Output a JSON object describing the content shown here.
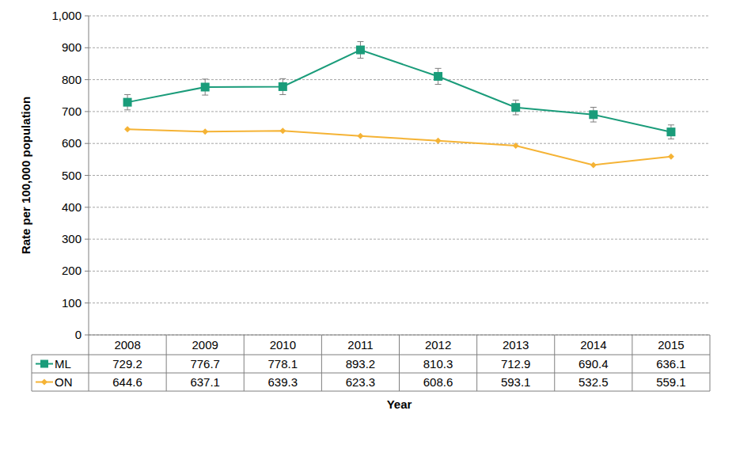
{
  "chart_data": {
    "type": "line",
    "y_label": "Rate per 100,000 population",
    "x_label": "Year",
    "categories": [
      "2008",
      "2009",
      "2010",
      "2011",
      "2012",
      "2013",
      "2014",
      "2015"
    ],
    "series": [
      {
        "name": "ML",
        "color": "#1a9c7a",
        "marker": "square",
        "values": [
          729.2,
          776.7,
          778.1,
          893.2,
          810.3,
          712.9,
          690.4,
          636.1
        ],
        "errors": [
          24,
          25,
          25,
          26,
          25,
          23,
          23,
          22
        ]
      },
      {
        "name": "ON",
        "color": "#f5b335",
        "marker": "diamond",
        "values": [
          644.6,
          637.1,
          639.3,
          623.3,
          608.6,
          593.1,
          532.5,
          559.1
        ]
      }
    ],
    "ylim": [
      0,
      1000
    ],
    "yticks": [
      0,
      100,
      200,
      300,
      400,
      500,
      600,
      700,
      800,
      900,
      {
        "value": 1000,
        "label": "1,000"
      }
    ],
    "grid": true
  }
}
